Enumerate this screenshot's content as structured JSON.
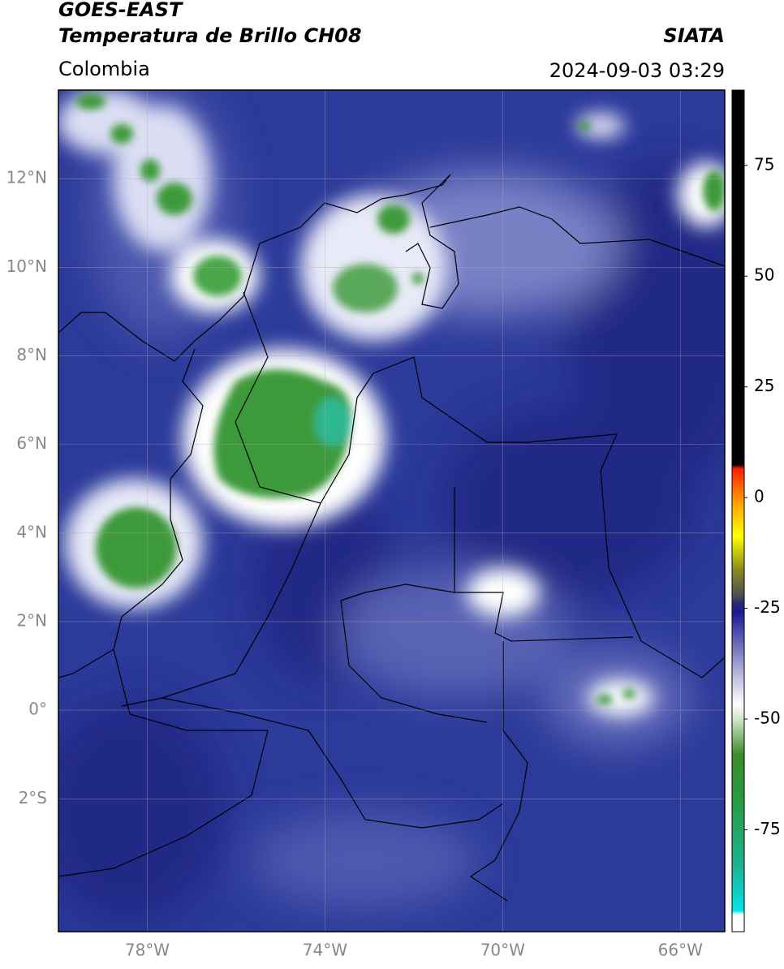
{
  "header": {
    "line1": "GOES-EAST",
    "line2": "Temperatura de Brillo CH08",
    "brand": "SIATA",
    "region": "Colombia",
    "datetime": "2024-09-03 03:29"
  },
  "map": {
    "lon_range": [
      -80,
      -65
    ],
    "lat_range": [
      -5,
      14
    ],
    "lon_ticks": [
      {
        "value": -78,
        "label": "78°W"
      },
      {
        "value": -74,
        "label": "74°W"
      },
      {
        "value": -70,
        "label": "70°W"
      },
      {
        "value": -66,
        "label": "66°W"
      }
    ],
    "lat_ticks": [
      {
        "value": 12,
        "label": "12°N"
      },
      {
        "value": 10,
        "label": "10°N"
      },
      {
        "value": 8,
        "label": "8°N"
      },
      {
        "value": 6,
        "label": "6°N"
      },
      {
        "value": 4,
        "label": "4°N"
      },
      {
        "value": 2,
        "label": "2°N"
      },
      {
        "value": 0,
        "label": "0°"
      },
      {
        "value": -2,
        "label": "2°S"
      }
    ]
  },
  "colorbar": {
    "range": [
      -98,
      92
    ],
    "ticks": [
      75,
      50,
      25,
      0,
      -25,
      -50,
      -75
    ]
  }
}
